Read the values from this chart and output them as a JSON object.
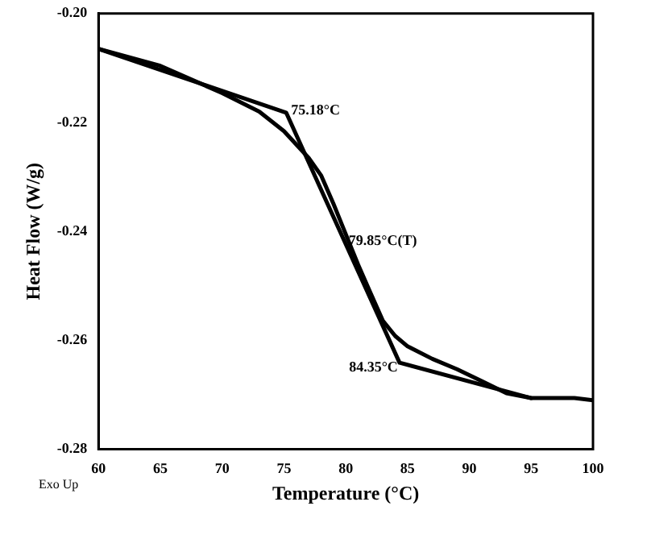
{
  "chart_data": {
    "type": "line",
    "xlabel": "Temperature (°C)",
    "ylabel": "Heat Flow (W/g)",
    "x": [
      60,
      65,
      70,
      73,
      75,
      77,
      78,
      79,
      80,
      81,
      82,
      83,
      84,
      85,
      87,
      89,
      91,
      93,
      95,
      98.5,
      100
    ],
    "series": [
      {
        "color": "#000000",
        "values": [
          -0.2065,
          -0.2096,
          -0.2146,
          -0.218,
          -0.2216,
          -0.2265,
          -0.2297,
          -0.2349,
          -0.2405,
          -0.2461,
          -0.2513,
          -0.2564,
          -0.2592,
          -0.2611,
          -0.2634,
          -0.2653,
          -0.2675,
          -0.2697,
          -0.2706,
          -0.2706,
          -0.271
        ]
      },
      {
        "color": "#000000",
        "x": [
          60,
          75.18,
          84.35,
          95
        ],
        "values": [
          -0.2065,
          -0.2182,
          -0.2641,
          -0.2706
        ]
      }
    ],
    "xlim": [
      60,
      100
    ],
    "xticks": [
      60,
      65,
      70,
      75,
      80,
      85,
      90,
      95,
      100
    ],
    "ylim": [
      -0.28,
      -0.2
    ],
    "yticks": [
      {
        "value": -0.28,
        "label": "-0.28"
      },
      {
        "value": -0.26,
        "label": "-0.26"
      },
      {
        "value": -0.24,
        "label": "-0.24"
      },
      {
        "value": -0.22,
        "label": "-0.22"
      },
      {
        "value": -0.2,
        "label": "-0.20"
      }
    ],
    "marker": "none",
    "line_style": "solid",
    "grid": false,
    "legend": false,
    "annotations": [
      {
        "text": "75.18°C",
        "x": 75.18,
        "y": -0.2182
      },
      {
        "text": "79.85°C(T)",
        "x": 79.85,
        "y": -0.2421
      },
      {
        "text": "84.35°C",
        "x": 84.35,
        "y": -0.2641
      },
      "Exo Up"
    ]
  }
}
